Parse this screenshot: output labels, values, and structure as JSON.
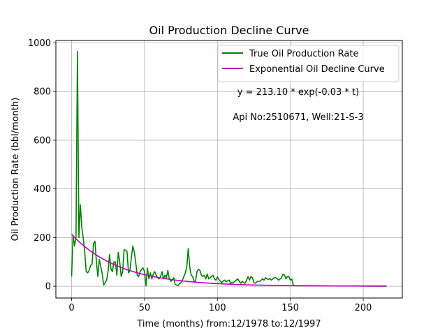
{
  "chart_data": {
    "type": "line",
    "title": "Oil Production Decline Curve",
    "xlabel": "Time (months) from:12/1978 to:12/1997",
    "ylabel": "Oil Production Rate (bbl/month)",
    "xlim": [
      -10.8,
      226.8
    ],
    "ylim": [
      -48.5,
      1010
    ],
    "xticks": [
      0,
      50,
      100,
      150,
      200
    ],
    "yticks": [
      0,
      200,
      400,
      600,
      800,
      1000
    ],
    "grid": true,
    "legend_position": "top-right",
    "annotations": [
      "y = 213.10 * exp(-0.03 * t)",
      "Api No:2510671, Well:21-S-3"
    ],
    "series": [
      {
        "name": "True Oil Production Rate",
        "color": "#008000",
        "points": [
          [
            0,
            40
          ],
          [
            1,
            210
          ],
          [
            2,
            165
          ],
          [
            3,
            200
          ],
          [
            4,
            965
          ],
          [
            5,
            200
          ],
          [
            6,
            335
          ],
          [
            7,
            240
          ],
          [
            8,
            195
          ],
          [
            9,
            140
          ],
          [
            10,
            60
          ],
          [
            11,
            55
          ],
          [
            12,
            65
          ],
          [
            13,
            85
          ],
          [
            14,
            90
          ],
          [
            15,
            175
          ],
          [
            16,
            185
          ],
          [
            17,
            100
          ],
          [
            18,
            40
          ],
          [
            19,
            110
          ],
          [
            20,
            80
          ],
          [
            21,
            50
          ],
          [
            22,
            5
          ],
          [
            23,
            15
          ],
          [
            24,
            25
          ],
          [
            25,
            60
          ],
          [
            26,
            130
          ],
          [
            27,
            70
          ],
          [
            28,
            60
          ],
          [
            29,
            100
          ],
          [
            30,
            100
          ],
          [
            31,
            45
          ],
          [
            32,
            140
          ],
          [
            33,
            100
          ],
          [
            34,
            40
          ],
          [
            35,
            60
          ],
          [
            36,
            150
          ],
          [
            37,
            148
          ],
          [
            38,
            142
          ],
          [
            39,
            55
          ],
          [
            40,
            65
          ],
          [
            41,
            120
          ],
          [
            42,
            165
          ],
          [
            43,
            140
          ],
          [
            44,
            95
          ],
          [
            45,
            45
          ],
          [
            46,
            40
          ],
          [
            47,
            60
          ],
          [
            48,
            70
          ],
          [
            49,
            75
          ],
          [
            50,
            60
          ],
          [
            51,
            2
          ],
          [
            52,
            75
          ],
          [
            53,
            30
          ],
          [
            54,
            55
          ],
          [
            55,
            30
          ],
          [
            56,
            50
          ],
          [
            57,
            60
          ],
          [
            58,
            45
          ],
          [
            59,
            35
          ],
          [
            60,
            30
          ],
          [
            61,
            40
          ],
          [
            62,
            60
          ],
          [
            63,
            30
          ],
          [
            64,
            45
          ],
          [
            65,
            35
          ],
          [
            66,
            65
          ],
          [
            67,
            30
          ],
          [
            68,
            20
          ],
          [
            69,
            25
          ],
          [
            70,
            35
          ],
          [
            71,
            8
          ],
          [
            72,
            5
          ],
          [
            73,
            3
          ],
          [
            74,
            10
          ],
          [
            75,
            15
          ],
          [
            76,
            25
          ],
          [
            77,
            40
          ],
          [
            78,
            55
          ],
          [
            79,
            80
          ],
          [
            80,
            155
          ],
          [
            81,
            80
          ],
          [
            82,
            45
          ],
          [
            83,
            40
          ],
          [
            84,
            20
          ],
          [
            85,
            20
          ],
          [
            86,
            60
          ],
          [
            87,
            70
          ],
          [
            88,
            65
          ],
          [
            89,
            45
          ],
          [
            90,
            40
          ],
          [
            91,
            45
          ],
          [
            92,
            30
          ],
          [
            93,
            50
          ],
          [
            94,
            30
          ],
          [
            95,
            35
          ],
          [
            96,
            40
          ],
          [
            97,
            45
          ],
          [
            98,
            30
          ],
          [
            99,
            25
          ],
          [
            100,
            38
          ],
          [
            101,
            28
          ],
          [
            102,
            20
          ],
          [
            103,
            15
          ],
          [
            104,
            22
          ],
          [
            105,
            25
          ],
          [
            106,
            18
          ],
          [
            107,
            22
          ],
          [
            108,
            25
          ],
          [
            109,
            12
          ],
          [
            110,
            15
          ],
          [
            111,
            15
          ],
          [
            112,
            20
          ],
          [
            113,
            25
          ],
          [
            114,
            30
          ],
          [
            115,
            20
          ],
          [
            116,
            12
          ],
          [
            117,
            20
          ],
          [
            118,
            15
          ],
          [
            119,
            12
          ],
          [
            120,
            25
          ],
          [
            121,
            40
          ],
          [
            122,
            25
          ],
          [
            123,
            40
          ],
          [
            124,
            35
          ],
          [
            125,
            15
          ],
          [
            126,
            12
          ],
          [
            127,
            18
          ],
          [
            128,
            20
          ],
          [
            129,
            20
          ],
          [
            130,
            25
          ],
          [
            131,
            30
          ],
          [
            132,
            25
          ],
          [
            133,
            35
          ],
          [
            134,
            30
          ],
          [
            135,
            28
          ],
          [
            136,
            32
          ],
          [
            137,
            25
          ],
          [
            138,
            30
          ],
          [
            139,
            35
          ],
          [
            140,
            35
          ],
          [
            141,
            30
          ],
          [
            142,
            25
          ],
          [
            143,
            30
          ],
          [
            144,
            35
          ],
          [
            145,
            50
          ],
          [
            146,
            45
          ],
          [
            147,
            30
          ],
          [
            148,
            40
          ],
          [
            149,
            40
          ],
          [
            150,
            25
          ],
          [
            151,
            30
          ],
          [
            152,
            5
          ],
          [
            153,
            2
          ],
          [
            155,
            2
          ],
          [
            160,
            2
          ],
          [
            180,
            1
          ],
          [
            200,
            1
          ],
          [
            216,
            0
          ]
        ]
      },
      {
        "name": "Exponential Oil Decline Curve",
        "color": "#BF00BF",
        "a": 213.1,
        "b": 0.03,
        "t_range": [
          0,
          216
        ]
      }
    ]
  }
}
